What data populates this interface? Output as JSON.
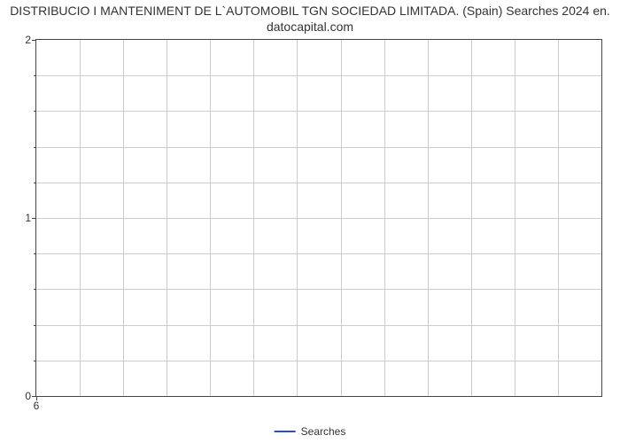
{
  "chart": {
    "type": "line",
    "title_line1": "DISTRIBUCIO I MANTENIMENT DE L`AUTOMOBIL TGN SOCIEDAD LIMITADA. (Spain) Searches 2024 en.",
    "title_line2": "datocapital.com",
    "title_fontsize": 14,
    "title_color": "#333333",
    "background_color": "#ffffff",
    "border_color": "#444444",
    "grid_color": "#cccccc",
    "axis_label_color": "#333333",
    "axis_label_fontsize": 12,
    "y_ticks": [
      0,
      1,
      2
    ],
    "y_minor_count_between": 4,
    "ylim_min": 0,
    "ylim_max": 2,
    "x_ticks": [
      6
    ],
    "x_grid_lines": 13,
    "series": [
      {
        "name": "Searches",
        "color": "#2b4ec7",
        "line_width": 2,
        "values": []
      }
    ],
    "legend": {
      "position": "bottom-center",
      "label": "Searches",
      "line_color": "#2b4ec7",
      "text_color": "#333333",
      "fontsize": 12
    }
  }
}
